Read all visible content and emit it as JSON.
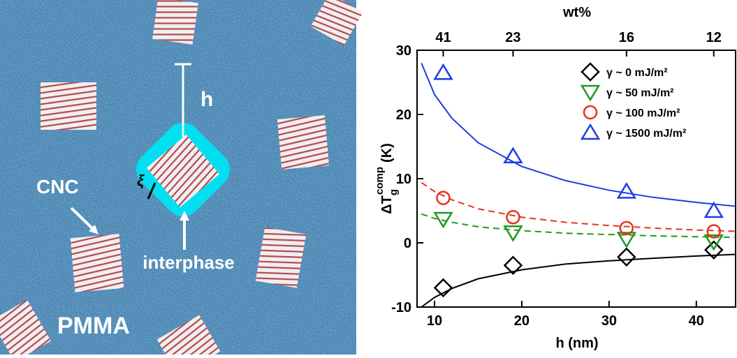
{
  "image": {
    "h": "h",
    "xi": "ξ",
    "cnc": "CNC",
    "interphase": "interphase",
    "pmma": "PMMA"
  },
  "chart_data": {
    "type": "scatter",
    "xlabel": "h (nm)",
    "x2label": "wt%",
    "ylabel": {
      "base": "ΔT",
      "sub": "g",
      "sup": "comp",
      "unit": "(K)"
    },
    "xlim": [
      8,
      44.5
    ],
    "xticks": [
      10,
      20,
      30,
      40
    ],
    "x2ticks": [
      {
        "value": 11,
        "label": "41"
      },
      {
        "value": 19,
        "label": "23"
      },
      {
        "value": 32,
        "label": "16"
      },
      {
        "value": 42,
        "label": "12"
      }
    ],
    "ylim": [
      -10,
      30
    ],
    "yticks": [
      -10,
      0,
      10,
      20,
      30
    ],
    "x": [
      11,
      19,
      32,
      42
    ],
    "series": [
      {
        "name": "γ ~ 0 mJ/m²",
        "color": "#000000",
        "marker": "diamond",
        "values": [
          -7,
          -3.5,
          -2.2,
          -1.1
        ]
      },
      {
        "name": "γ ~ 50 mJ/m²",
        "color": "#1e9a1e",
        "marker": "triangle-down",
        "values": [
          3.7,
          1.6,
          0.6,
          0.2
        ]
      },
      {
        "name": "γ ~ 100 mJ/m²",
        "color": "#e8321e",
        "marker": "circle",
        "values": [
          7,
          4,
          2.3,
          1.8
        ]
      },
      {
        "name": "γ ~ 1500 mJ/m²",
        "color": "#1e3ce6",
        "marker": "triangle-up",
        "values": [
          26.5,
          13.5,
          8,
          5
        ]
      }
    ],
    "fits_x": [
      8.5,
      10,
      12,
      15,
      20,
      25,
      30,
      35,
      40,
      44.5
    ],
    "fits": [
      {
        "color": "#000000",
        "dashed": false,
        "values": [
          -10,
          -8.5,
          -7.1,
          -5.6,
          -4.2,
          -3.3,
          -2.8,
          -2.4,
          -2.05,
          -1.8
        ]
      },
      {
        "color": "#1e9a1e",
        "dashed": true,
        "values": [
          4.5,
          3.8,
          3.2,
          2.5,
          1.9,
          1.5,
          1.3,
          1.1,
          0.95,
          0.85
        ]
      },
      {
        "color": "#e8321e",
        "dashed": true,
        "values": [
          9.4,
          8,
          6.7,
          5.3,
          4,
          3.2,
          2.7,
          2.3,
          2,
          1.8
        ]
      },
      {
        "color": "#1e3ce6",
        "dashed": false,
        "values": [
          28,
          23.1,
          19.4,
          15.6,
          11.9,
          9.7,
          8.2,
          7.1,
          6.3,
          5.7
        ]
      }
    ]
  }
}
